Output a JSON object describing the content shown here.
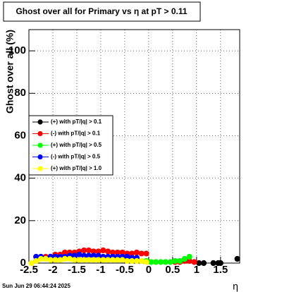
{
  "chart_data": {
    "type": "scatter",
    "title": "Ghost over all for Primary vs   η  at pT > 0.11",
    "y_label": "Ghost over all (%)",
    "x_label": "η",
    "timestamp": "Sun Jun 29 06:44:24 2025",
    "xlim": [
      -2.5,
      1.9
    ],
    "ylim": [
      0,
      110
    ],
    "xticks": [
      -2.5,
      -2,
      -1.5,
      -1,
      -0.5,
      0,
      0.5,
      1,
      1.5
    ],
    "yticks": [
      0,
      20,
      40,
      60,
      80,
      100
    ],
    "grid": true,
    "legend": "left",
    "series": [
      {
        "name": "(+) with pT/|q| > 0.1",
        "color": "#000000",
        "x": [
          1.05,
          1.15,
          1.35,
          1.45,
          1.5,
          1.85
        ],
        "values": [
          0,
          0,
          0,
          0,
          0,
          2
        ]
      },
      {
        "name": "(-) with pT/|q| > 0.1",
        "color": "#ff0000",
        "x": [
          -2.35,
          -2.25,
          -2.15,
          -2.05,
          -1.95,
          -1.85,
          -1.75,
          -1.65,
          -1.55,
          -1.45,
          -1.35,
          -1.25,
          -1.15,
          -1.05,
          -0.95,
          -0.85,
          -0.75,
          -0.65,
          -0.55,
          -0.45,
          -0.35,
          -0.25,
          -0.15,
          -0.05,
          0.55,
          0.65,
          0.75,
          0.85,
          0.95
        ],
        "values": [
          1,
          2,
          3,
          3,
          4,
          4,
          5,
          5,
          5,
          5.5,
          6,
          6,
          5.5,
          5.5,
          6,
          5.5,
          5,
          5,
          5,
          4.5,
          4.5,
          5,
          4.5,
          4.5,
          0.5,
          0.5,
          1,
          1,
          0.5
        ]
      },
      {
        "name": "(+) with pT/|q| > 0.5",
        "color": "#00ff00",
        "x": [
          -0.05,
          0.05,
          0.15,
          0.25,
          0.35,
          0.45,
          0.55,
          0.65,
          0.75,
          0.85
        ],
        "values": [
          1,
          0.5,
          0.5,
          0.5,
          0.5,
          0.5,
          1,
          1,
          2,
          3
        ]
      },
      {
        "name": "(-) with pT/|q| > 0.5",
        "color": "#0000ff",
        "x": [
          -2.35,
          -2.25,
          -2.15,
          -2.05,
          -1.95,
          -1.85,
          -1.75,
          -1.65,
          -1.55,
          -1.45,
          -1.35,
          -1.25,
          -1.15,
          -1.05,
          -0.95,
          -0.85,
          -0.75,
          -0.65,
          -0.55,
          -0.45,
          -0.35,
          -0.25
        ],
        "values": [
          3,
          3,
          2,
          3,
          3,
          3,
          3,
          3.5,
          3.5,
          4,
          3.5,
          3.5,
          3.5,
          3.5,
          3,
          3,
          3,
          3,
          3,
          3,
          2.5,
          2.5
        ]
      },
      {
        "name": "(+) with pT/|q| > 1.0",
        "color": "#ffff00",
        "x": [
          -2.45,
          -2.35,
          -2.25,
          -2.15,
          -2.05,
          -1.95,
          -1.85,
          -1.75,
          -1.65,
          -1.55,
          -1.45,
          -1.35,
          -1.25,
          -1.15,
          -1.05,
          -0.95,
          -0.85,
          -0.75,
          -0.65,
          -0.55,
          -0.45,
          -0.35,
          -0.25,
          -0.15,
          -0.05
        ],
        "values": [
          0,
          1,
          2,
          2,
          1.5,
          1.5,
          1.5,
          2,
          2,
          1.5,
          1.5,
          1.5,
          1.5,
          1.5,
          1.5,
          1.5,
          1.5,
          1.5,
          1.5,
          1.5,
          1,
          1,
          1,
          1,
          0.5
        ]
      }
    ]
  }
}
